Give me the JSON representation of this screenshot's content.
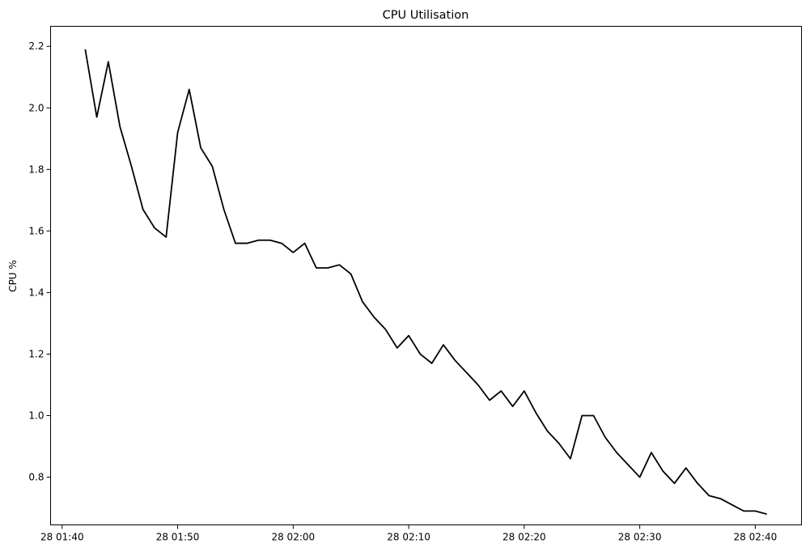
{
  "chart_data": {
    "type": "line",
    "title": "CPU Utilisation",
    "xlabel": "",
    "ylabel": "CPU %",
    "x_ticks": [
      "28 01:40",
      "28 01:50",
      "28 02:00",
      "28 02:10",
      "28 02:20",
      "28 02:30",
      "28 02:40"
    ],
    "y_ticks": [
      "0.8",
      "1.0",
      "1.2",
      "1.4",
      "1.6",
      "1.8",
      "2.0",
      "2.2"
    ],
    "xlim": [
      "28 01:39",
      "28 02:44"
    ],
    "ylim": [
      0.645,
      2.265
    ],
    "grid": false,
    "line_color": "#000000",
    "series": [
      {
        "x": [
          "28 01:42",
          "28 01:43",
          "28 01:44",
          "28 01:45",
          "28 01:46",
          "28 01:47",
          "28 01:48",
          "28 01:49",
          "28 01:50",
          "28 01:51",
          "28 01:52",
          "28 01:53",
          "28 01:54",
          "28 01:55",
          "28 01:56",
          "28 01:57",
          "28 01:58",
          "28 01:59",
          "28 02:00",
          "28 02:01",
          "28 02:02",
          "28 02:03",
          "28 02:04",
          "28 02:05",
          "28 02:06",
          "28 02:07",
          "28 02:08",
          "28 02:09",
          "28 02:10",
          "28 02:11",
          "28 02:12",
          "28 02:13",
          "28 02:14",
          "28 02:15",
          "28 02:16",
          "28 02:17",
          "28 02:18",
          "28 02:19",
          "28 02:20",
          "28 02:21",
          "28 02:22",
          "28 02:23",
          "28 02:24",
          "28 02:25",
          "28 02:26",
          "28 02:27",
          "28 02:28",
          "28 02:29",
          "28 02:30",
          "28 02:31",
          "28 02:32",
          "28 02:33",
          "28 02:34",
          "28 02:35",
          "28 02:36",
          "28 02:37",
          "28 02:38",
          "28 02:39",
          "28 02:40",
          "28 02:41"
        ],
        "values": [
          2.19,
          1.97,
          2.15,
          1.94,
          1.81,
          1.67,
          1.61,
          1.58,
          1.92,
          2.06,
          1.87,
          1.81,
          1.67,
          1.56,
          1.56,
          1.57,
          1.57,
          1.56,
          1.53,
          1.56,
          1.48,
          1.48,
          1.49,
          1.46,
          1.37,
          1.32,
          1.28,
          1.22,
          1.26,
          1.2,
          1.17,
          1.23,
          1.18,
          1.14,
          1.1,
          1.05,
          1.08,
          1.03,
          1.08,
          1.01,
          0.95,
          0.91,
          0.86,
          1.0,
          1.0,
          0.93,
          0.88,
          0.84,
          0.8,
          0.88,
          0.82,
          0.78,
          0.83,
          0.78,
          0.74,
          0.73,
          0.71,
          0.69,
          0.69,
          0.68
        ]
      }
    ]
  }
}
